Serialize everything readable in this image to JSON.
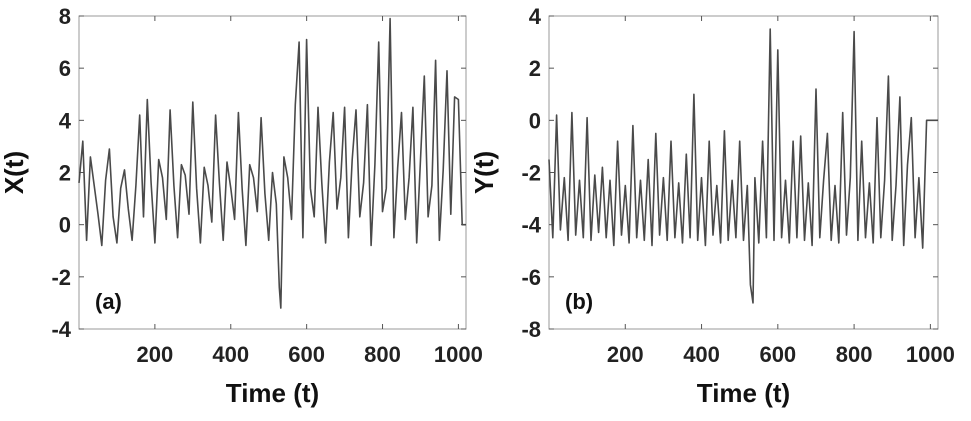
{
  "chart_data": [
    {
      "type": "line",
      "panel_label": "(a)",
      "xlabel": "Time (t)",
      "ylabel": "X(t)",
      "xlim": [
        0,
        1020
      ],
      "ylim": [
        -4,
        8
      ],
      "xticks": [
        200,
        400,
        600,
        800,
        1000
      ],
      "xtick_labels": [
        "200",
        "400",
        "600",
        "800",
        "1000"
      ],
      "yticks": [
        -4,
        -2,
        0,
        2,
        4,
        6,
        8
      ],
      "ytick_labels": [
        "-4",
        "-2",
        "0",
        "2",
        "4",
        "6",
        "8"
      ],
      "grid": false,
      "legend": "none",
      "line_color": "#4a4a4a",
      "series": [
        {
          "x": [
            0,
            10,
            20,
            30,
            40,
            50,
            60,
            70,
            80,
            90,
            100,
            110,
            120,
            130,
            140,
            150,
            160,
            170,
            180,
            190,
            200,
            210,
            220,
            230,
            240,
            250,
            260,
            270,
            280,
            290,
            300,
            310,
            320,
            330,
            340,
            350,
            360,
            370,
            380,
            390,
            400,
            410,
            420,
            430,
            440,
            450,
            460,
            470,
            480,
            490,
            500,
            510,
            520,
            528,
            532,
            540,
            550,
            560,
            570,
            580,
            590,
            600,
            610,
            620,
            630,
            640,
            650,
            660,
            670,
            680,
            690,
            700,
            710,
            720,
            730,
            740,
            750,
            760,
            770,
            780,
            790,
            800,
            810,
            820,
            830,
            840,
            850,
            860,
            870,
            880,
            890,
            900,
            910,
            920,
            930,
            940,
            950,
            960,
            970,
            980,
            990,
            1000,
            1010,
            1020
          ],
          "y": [
            1.6,
            3.2,
            -0.6,
            2.6,
            1.5,
            0.4,
            -0.8,
            1.7,
            2.9,
            0.3,
            -0.7,
            1.4,
            2.1,
            0.6,
            -0.6,
            1.5,
            4.2,
            0.3,
            4.8,
            1.6,
            -0.7,
            2.5,
            1.8,
            0.2,
            4.4,
            1.5,
            -0.5,
            2.3,
            1.9,
            0.4,
            4.7,
            1.4,
            -0.7,
            2.2,
            1.5,
            0.1,
            4.2,
            1.6,
            -0.6,
            2.4,
            1.4,
            0.2,
            4.3,
            1.4,
            -0.8,
            2.3,
            1.8,
            0.5,
            4.1,
            1.2,
            -0.6,
            2.0,
            0.8,
            -2.4,
            -3.2,
            2.6,
            1.8,
            0.2,
            4.6,
            7.0,
            -0.5,
            7.1,
            1.4,
            0.3,
            4.5,
            1.6,
            -0.7,
            2.4,
            4.3,
            0.6,
            1.8,
            4.5,
            -0.5,
            2.5,
            4.4,
            0.3,
            1.6,
            4.6,
            -0.8,
            2.3,
            7.0,
            0.5,
            1.4,
            7.9,
            -0.5,
            2.2,
            4.3,
            0.2,
            1.8,
            4.5,
            -0.7,
            2.5,
            5.7,
            0.3,
            1.5,
            6.3,
            -0.6,
            2.1,
            5.9,
            0.4,
            4.9,
            4.8,
            0.0,
            0.0
          ]
        }
      ]
    },
    {
      "type": "line",
      "panel_label": "(b)",
      "xlabel": "Time (t)",
      "ylabel": "Y(t)",
      "xlim": [
        0,
        1020
      ],
      "ylim": [
        -8,
        4
      ],
      "xticks": [
        200,
        400,
        600,
        800,
        1000
      ],
      "xtick_labels": [
        "200",
        "400",
        "600",
        "800",
        "1000"
      ],
      "yticks": [
        -8,
        -6,
        -4,
        -2,
        0,
        2,
        4
      ],
      "ytick_labels": [
        "-8",
        "-6",
        "-4",
        "-2",
        "0",
        "2",
        "4"
      ],
      "grid": false,
      "legend": "none",
      "line_color": "#4a4a4a",
      "series": [
        {
          "x": [
            0,
            10,
            20,
            30,
            40,
            50,
            60,
            70,
            80,
            90,
            100,
            110,
            120,
            130,
            140,
            150,
            160,
            170,
            180,
            190,
            200,
            210,
            220,
            230,
            240,
            250,
            260,
            270,
            280,
            290,
            300,
            310,
            320,
            330,
            340,
            350,
            360,
            370,
            380,
            390,
            400,
            410,
            420,
            430,
            440,
            450,
            460,
            470,
            480,
            490,
            500,
            510,
            520,
            528,
            535,
            540,
            550,
            560,
            570,
            580,
            590,
            600,
            610,
            620,
            630,
            640,
            650,
            660,
            670,
            680,
            690,
            700,
            710,
            720,
            730,
            740,
            750,
            760,
            770,
            780,
            790,
            800,
            810,
            820,
            830,
            840,
            850,
            860,
            870,
            880,
            890,
            900,
            910,
            920,
            930,
            940,
            950,
            960,
            970,
            980,
            990,
            1000,
            1010,
            1020
          ],
          "y": [
            -1.5,
            -4.5,
            0.2,
            -4.2,
            -2.2,
            -4.6,
            0.3,
            -4.4,
            -2.3,
            -4.5,
            0.1,
            -4.6,
            -2.1,
            -4.3,
            -1.8,
            -4.5,
            -2.3,
            -4.8,
            -0.8,
            -4.4,
            -2.5,
            -4.7,
            -0.2,
            -4.5,
            -2.3,
            -4.6,
            -1.5,
            -4.8,
            -0.5,
            -4.4,
            -2.2,
            -4.6,
            -0.8,
            -4.5,
            -2.4,
            -4.7,
            -1.3,
            -4.5,
            1.0,
            -4.6,
            -2.2,
            -4.8,
            -0.8,
            -4.4,
            -2.5,
            -4.7,
            -0.4,
            -4.6,
            -2.3,
            -4.5,
            -0.8,
            -4.6,
            -2.5,
            -6.3,
            -7.0,
            -2.2,
            -4.7,
            -0.8,
            -4.5,
            3.5,
            -4.6,
            2.7,
            -4.5,
            -2.3,
            -4.7,
            -0.8,
            -4.5,
            -0.6,
            -4.6,
            -2.4,
            -4.8,
            1.2,
            -4.5,
            -2.3,
            -0.5,
            -4.6,
            -2.5,
            -4.7,
            0.3,
            -4.4,
            -2.2,
            3.4,
            -4.6,
            -0.8,
            -4.5,
            -2.4,
            -4.7,
            0.1,
            -4.5,
            -2.3,
            1.7,
            -4.6,
            -2.5,
            0.9,
            -4.8,
            -1.7,
            0.1,
            -4.5,
            -2.2,
            -4.9,
            0.0,
            0.0,
            0.0,
            0.0
          ]
        }
      ]
    }
  ]
}
